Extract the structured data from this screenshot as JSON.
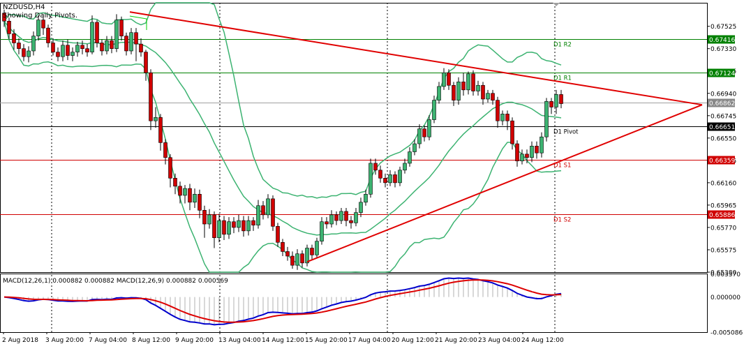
{
  "header": {
    "symbol_line": "NZDUSD,H4",
    "note_line": "Showing Daily Pivots."
  },
  "macd_label": {
    "text_a": "MACD(12,26,1) 0.000882 0.000882",
    "text_b": "MACD(12,26,9) 0.000882 0.000569"
  },
  "chart_data": {
    "type": "candlestick",
    "symbol": "NZDUSD",
    "timeframe": "H4",
    "price_axis": {
      "ylim": [
        0.6538,
        0.6773
      ],
      "ticks": [
        "0.67525",
        "0.67330",
        "0.67135",
        "0.66940",
        "0.66745",
        "0.66550",
        "0.66355",
        "0.66160",
        "0.65965",
        "0.65770",
        "0.65575",
        "0.65380"
      ]
    },
    "x_axis_labels": [
      "2 Aug 2018",
      "3 Aug 20:00",
      "7 Aug 04:00",
      "8 Aug 12:00",
      "9 Aug 20:00",
      "13 Aug 04:00",
      "14 Aug 12:00",
      "15 Aug 20:00",
      "17 Aug 04:00",
      "20 Aug 12:00",
      "21 Aug 20:00",
      "23 Aug 04:00",
      "24 Aug 12:00"
    ],
    "pivot_levels": [
      {
        "name": "D1 R2",
        "price": 0.67416,
        "tag": "0.67416",
        "color": "#008000"
      },
      {
        "name": "D1 R1",
        "price": 0.67124,
        "tag": "0.67124",
        "color": "#008000"
      },
      {
        "name": "D1 Pivot",
        "price": 0.66651,
        "tag": "0.66651",
        "color": "#000000"
      },
      {
        "name": "D1 S1",
        "price": 0.66359,
        "tag": "0.66359",
        "color": "#d00000"
      },
      {
        "name": "D1 S2",
        "price": 0.65886,
        "tag": "0.65886",
        "color": "#d00000"
      }
    ],
    "current_price": {
      "price": 0.66862,
      "tag": "0.66862"
    },
    "candles": [
      [
        0.6764,
        0.6757,
        0.6767,
        0.6752
      ],
      [
        0.6757,
        0.6746,
        0.676,
        0.6741
      ],
      [
        0.6746,
        0.6738,
        0.675,
        0.6732
      ],
      [
        0.6738,
        0.6733,
        0.6742,
        0.6728
      ],
      [
        0.6733,
        0.6726,
        0.6737,
        0.6722
      ],
      [
        0.6726,
        0.6731,
        0.6735,
        0.6721
      ],
      [
        0.6731,
        0.6744,
        0.6748,
        0.6727
      ],
      [
        0.6744,
        0.6758,
        0.6762,
        0.674
      ],
      [
        0.6758,
        0.6751,
        0.6763,
        0.6745
      ],
      [
        0.6751,
        0.6738,
        0.6754,
        0.6734
      ],
      [
        0.6738,
        0.673,
        0.6742,
        0.6727
      ],
      [
        0.673,
        0.6726,
        0.6734,
        0.6722
      ],
      [
        0.6726,
        0.6736,
        0.674,
        0.6722
      ],
      [
        0.6736,
        0.6727,
        0.6741,
        0.6723
      ],
      [
        0.6727,
        0.673,
        0.6734,
        0.6722
      ],
      [
        0.673,
        0.6736,
        0.6739,
        0.6726
      ],
      [
        0.6736,
        0.6733,
        0.674,
        0.6728
      ],
      [
        0.6733,
        0.673,
        0.6737,
        0.6726
      ],
      [
        0.673,
        0.6756,
        0.6762,
        0.6728
      ],
      [
        0.6756,
        0.6738,
        0.6758,
        0.6734
      ],
      [
        0.6738,
        0.6731,
        0.6741,
        0.6727
      ],
      [
        0.6731,
        0.674,
        0.6744,
        0.6728
      ],
      [
        0.674,
        0.6733,
        0.6744,
        0.6729
      ],
      [
        0.6733,
        0.6758,
        0.6763,
        0.673
      ],
      [
        0.6758,
        0.6744,
        0.6761,
        0.674
      ],
      [
        0.6744,
        0.6731,
        0.6747,
        0.6727
      ],
      [
        0.6731,
        0.6747,
        0.6751,
        0.6728
      ],
      [
        0.6747,
        0.6737,
        0.6751,
        0.6722
      ],
      [
        0.6737,
        0.673,
        0.6742,
        0.6726
      ],
      [
        0.673,
        0.6712,
        0.6732,
        0.6705
      ],
      [
        0.6712,
        0.667,
        0.6715,
        0.6662
      ],
      [
        0.667,
        0.6673,
        0.6682,
        0.6664
      ],
      [
        0.6673,
        0.6651,
        0.6676,
        0.6644
      ],
      [
        0.6651,
        0.6638,
        0.6654,
        0.6632
      ],
      [
        0.6638,
        0.662,
        0.6641,
        0.6612
      ],
      [
        0.662,
        0.6613,
        0.6624,
        0.6606
      ],
      [
        0.6613,
        0.6605,
        0.6617,
        0.6598
      ],
      [
        0.6605,
        0.6611,
        0.6614,
        0.6598
      ],
      [
        0.6611,
        0.6599,
        0.6615,
        0.6592
      ],
      [
        0.6599,
        0.6606,
        0.6611,
        0.6594
      ],
      [
        0.6606,
        0.6592,
        0.661,
        0.6585
      ],
      [
        0.6592,
        0.658,
        0.6596,
        0.6568
      ],
      [
        0.658,
        0.6588,
        0.6593,
        0.6576
      ],
      [
        0.6588,
        0.6568,
        0.6591,
        0.6559
      ],
      [
        0.6568,
        0.6583,
        0.6589,
        0.6564
      ],
      [
        0.6583,
        0.6571,
        0.6587,
        0.6566
      ],
      [
        0.6571,
        0.6582,
        0.6586,
        0.6567
      ],
      [
        0.6582,
        0.6577,
        0.6586,
        0.6572
      ],
      [
        0.6577,
        0.6583,
        0.6588,
        0.6573
      ],
      [
        0.6583,
        0.6574,
        0.6587,
        0.6569
      ],
      [
        0.6574,
        0.6583,
        0.6587,
        0.657
      ],
      [
        0.6583,
        0.6579,
        0.6586,
        0.6574
      ],
      [
        0.6579,
        0.6596,
        0.6601,
        0.6576
      ],
      [
        0.6596,
        0.6588,
        0.66,
        0.6584
      ],
      [
        0.6588,
        0.6602,
        0.6606,
        0.6585
      ],
      [
        0.6602,
        0.6578,
        0.6605,
        0.6574
      ],
      [
        0.6578,
        0.6564,
        0.6581,
        0.656
      ],
      [
        0.6564,
        0.6556,
        0.6567,
        0.6552
      ],
      [
        0.6556,
        0.6552,
        0.656,
        0.6548
      ],
      [
        0.6552,
        0.6544,
        0.6556,
        0.6541
      ],
      [
        0.6544,
        0.6554,
        0.6558,
        0.654
      ],
      [
        0.6554,
        0.6546,
        0.6557,
        0.6542
      ],
      [
        0.6546,
        0.6559,
        0.6562,
        0.6543
      ],
      [
        0.6559,
        0.6553,
        0.6562,
        0.6549
      ],
      [
        0.6553,
        0.6565,
        0.6568,
        0.655
      ],
      [
        0.6565,
        0.6582,
        0.6586,
        0.6562
      ],
      [
        0.6582,
        0.658,
        0.6586,
        0.6576
      ],
      [
        0.658,
        0.6588,
        0.6592,
        0.6577
      ],
      [
        0.6588,
        0.6583,
        0.6591,
        0.6579
      ],
      [
        0.6583,
        0.6591,
        0.6594,
        0.658
      ],
      [
        0.6591,
        0.6583,
        0.6594,
        0.6578
      ],
      [
        0.6583,
        0.6581,
        0.6587,
        0.6576
      ],
      [
        0.6581,
        0.659,
        0.6594,
        0.6578
      ],
      [
        0.659,
        0.6599,
        0.6603,
        0.6586
      ],
      [
        0.6599,
        0.6606,
        0.661,
        0.6596
      ],
      [
        0.6606,
        0.6633,
        0.6637,
        0.6603
      ],
      [
        0.6633,
        0.6627,
        0.6637,
        0.6623
      ],
      [
        0.6627,
        0.662,
        0.6631,
        0.6616
      ],
      [
        0.662,
        0.6616,
        0.6624,
        0.6612
      ],
      [
        0.6616,
        0.6623,
        0.6627,
        0.6613
      ],
      [
        0.6623,
        0.6616,
        0.6626,
        0.6612
      ],
      [
        0.6616,
        0.6627,
        0.663,
        0.6613
      ],
      [
        0.6627,
        0.6633,
        0.6637,
        0.6624
      ],
      [
        0.6633,
        0.6643,
        0.6647,
        0.663
      ],
      [
        0.6643,
        0.665,
        0.6654,
        0.664
      ],
      [
        0.665,
        0.6663,
        0.6667,
        0.6646
      ],
      [
        0.6663,
        0.6656,
        0.6666,
        0.6652
      ],
      [
        0.6656,
        0.6671,
        0.6675,
        0.6653
      ],
      [
        0.6671,
        0.6688,
        0.6692,
        0.6668
      ],
      [
        0.6688,
        0.67,
        0.6704,
        0.6685
      ],
      [
        0.67,
        0.6712,
        0.6716,
        0.6697
      ],
      [
        0.6712,
        0.6701,
        0.6715,
        0.6697
      ],
      [
        0.6701,
        0.6688,
        0.6704,
        0.6683
      ],
      [
        0.6688,
        0.6704,
        0.6708,
        0.6684
      ],
      [
        0.6704,
        0.6697,
        0.6712,
        0.6692
      ],
      [
        0.6697,
        0.6711,
        0.6713,
        0.6693
      ],
      [
        0.6711,
        0.6696,
        0.6714,
        0.6692
      ],
      [
        0.6696,
        0.6701,
        0.6705,
        0.6692
      ],
      [
        0.6701,
        0.6689,
        0.6704,
        0.6684
      ],
      [
        0.6689,
        0.6694,
        0.6697,
        0.6686
      ],
      [
        0.6694,
        0.6688,
        0.6697,
        0.6684
      ],
      [
        0.6688,
        0.667,
        0.6691,
        0.6664
      ],
      [
        0.667,
        0.6676,
        0.6679,
        0.6666
      ],
      [
        0.6676,
        0.667,
        0.6679,
        0.6662
      ],
      [
        0.667,
        0.665,
        0.6673,
        0.6645
      ],
      [
        0.665,
        0.6635,
        0.6653,
        0.663
      ],
      [
        0.6635,
        0.6641,
        0.6645,
        0.6632
      ],
      [
        0.6641,
        0.6638,
        0.6645,
        0.6633
      ],
      [
        0.6638,
        0.6648,
        0.6652,
        0.6634
      ],
      [
        0.6648,
        0.6642,
        0.6652,
        0.6637
      ],
      [
        0.6642,
        0.6656,
        0.666,
        0.6638
      ],
      [
        0.6656,
        0.6687,
        0.669,
        0.6652
      ],
      [
        0.6687,
        0.6682,
        0.669,
        0.6676
      ],
      [
        0.6682,
        0.6693,
        0.6697,
        0.6676
      ],
      [
        0.6693,
        0.6685,
        0.6697,
        0.6681
      ]
    ],
    "bollinger_bands": "20-period envelope (upper / middle / lower) drawn in green",
    "trendlines": [
      {
        "from": [
          0.6765,
          "7 Aug 04:00"
        ],
        "to": [
          0.6684,
          "24 Aug 12:00"
        ],
        "color": "#e00000"
      },
      {
        "from": [
          0.6547,
          "14 Aug 12:00"
        ],
        "to": [
          0.6684,
          "24 Aug 12:00"
        ],
        "color": "#e00000"
      }
    ],
    "macd_panel": {
      "ylim": [
        -0.0051,
        0.0034
      ],
      "ticks": [
        "0.003370",
        "0.000000",
        "-0.005086"
      ],
      "macd_line_color": "#0000cc",
      "signal_line_color": "#dd0000"
    }
  }
}
